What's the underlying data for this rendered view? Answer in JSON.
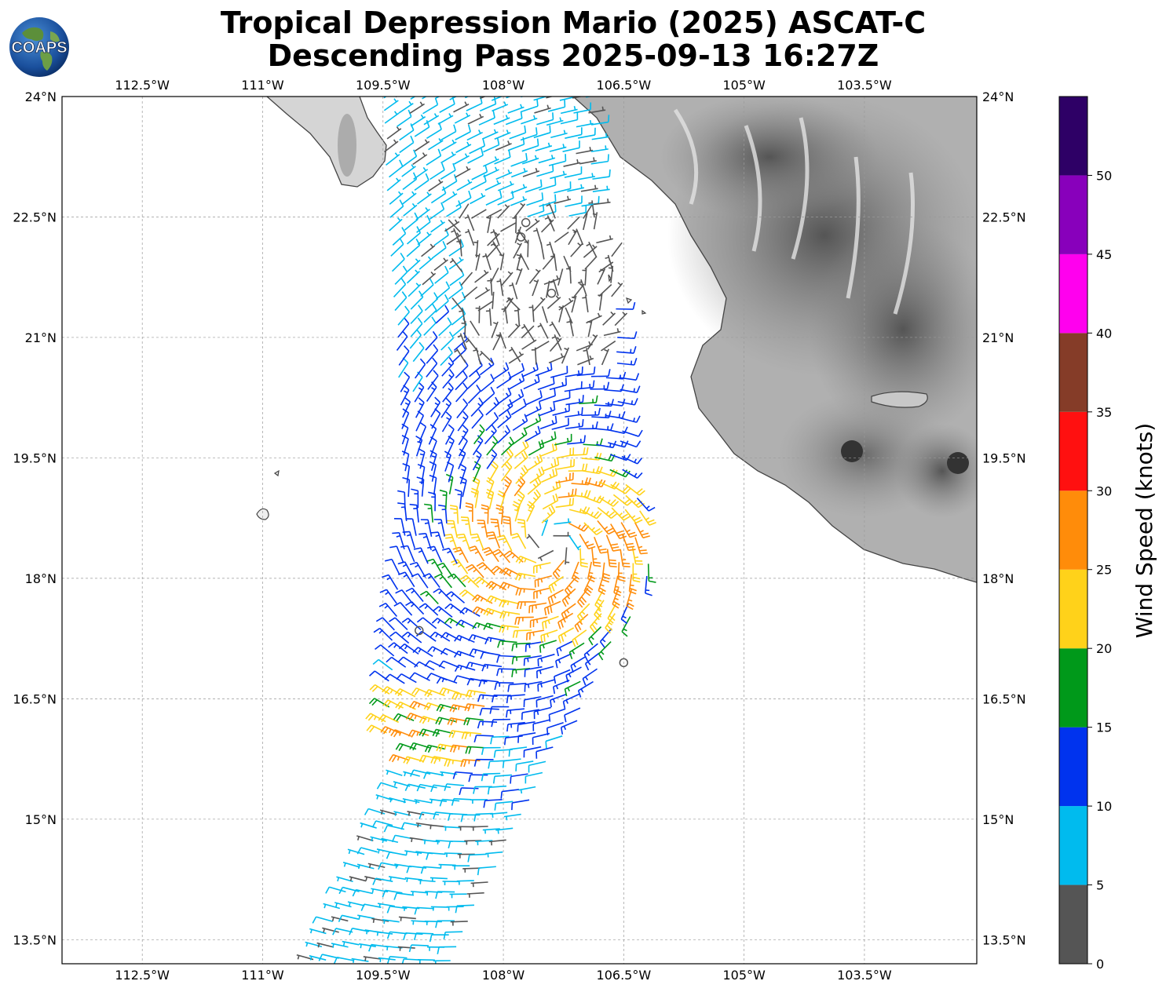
{
  "header": {
    "title_line1": "Tropical Depression Mario (2025) ASCAT-C",
    "title_line2": "Descending Pass 2025-09-13 16:27Z",
    "logo_text": "COAPS"
  },
  "map": {
    "lon_range": [
      -113.5,
      -102.1
    ],
    "lat_range": [
      13.2,
      24.0
    ],
    "lon_ticks": [
      "112.5°W",
      "111°W",
      "109.5°W",
      "108°W",
      "106.5°W",
      "105°W",
      "103.5°W"
    ],
    "lon_tick_values": [
      -112.5,
      -111,
      -109.5,
      -108,
      -106.5,
      -105,
      -103.5
    ],
    "lat_ticks": [
      "24°N",
      "22.5°N",
      "21°N",
      "19.5°N",
      "18°N",
      "16.5°N",
      "15°N",
      "13.5°N"
    ],
    "lat_tick_values": [
      24,
      22.5,
      21,
      19.5,
      18,
      16.5,
      15,
      13.5
    ],
    "gridlines": true,
    "terrain": "grayscale elevation over land (Mexico)",
    "storm_center": [
      -107.4,
      18.45
    ]
  },
  "colorbar": {
    "label": "Wind Speed (knots)",
    "tick_labels": [
      "0",
      "5",
      "10",
      "15",
      "20",
      "25",
      "30",
      "35",
      "40",
      "45",
      "50"
    ],
    "tick_values": [
      0,
      5,
      10,
      15,
      20,
      25,
      30,
      35,
      40,
      45,
      50
    ],
    "bins": [
      {
        "min": 0,
        "max": 5,
        "color": "#555555"
      },
      {
        "min": 5,
        "max": 10,
        "color": "#00bbee"
      },
      {
        "min": 10,
        "max": 15,
        "color": "#0033ee"
      },
      {
        "min": 15,
        "max": 20,
        "color": "#00991a"
      },
      {
        "min": 20,
        "max": 25,
        "color": "#ffd21a"
      },
      {
        "min": 25,
        "max": 30,
        "color": "#ff8c0a"
      },
      {
        "min": 30,
        "max": 35,
        "color": "#ff1010"
      },
      {
        "min": 35,
        "max": 40,
        "color": "#853c28"
      },
      {
        "min": 40,
        "max": 45,
        "color": "#ff00ee"
      },
      {
        "min": 45,
        "max": 50,
        "color": "#8800bb"
      },
      {
        "min": 50,
        "max": 55,
        "color": "#2e0066"
      }
    ]
  },
  "chart_data": {
    "type": "scatter",
    "description_units": "wind barbs (knots)",
    "swath_lat_range": [
      13.2,
      24.0
    ],
    "max_wind_kt": 28,
    "calm_circles": [
      {
        "lon": -107.72,
        "lat": 22.43
      },
      {
        "lon": -107.78,
        "lat": 22.25
      },
      {
        "lon": -107.4,
        "lat": 21.55
      },
      {
        "lon": -109.05,
        "lat": 17.35
      },
      {
        "lon": -106.5,
        "lat": 16.95
      }
    ]
  }
}
